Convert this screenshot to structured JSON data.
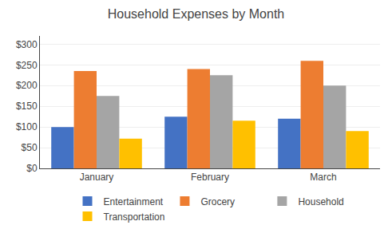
{
  "chart_data": {
    "type": "bar",
    "title": "Household Expenses by Month",
    "categories": [
      "January",
      "February",
      "March"
    ],
    "series": [
      {
        "name": "Entertainment",
        "color": "#4472C4",
        "values": [
          100,
          125,
          120
        ]
      },
      {
        "name": "Grocery",
        "color": "#ED7D31",
        "values": [
          235,
          240,
          260
        ]
      },
      {
        "name": "Household",
        "color": "#A5A5A5",
        "values": [
          175,
          225,
          200
        ]
      },
      {
        "name": "Transportation",
        "color": "#FFC000",
        "values": [
          72,
          115,
          90
        ]
      }
    ],
    "ylim": [
      0,
      320
    ],
    "yticks": [
      {
        "value": 0,
        "label": "$0"
      },
      {
        "value": 50,
        "label": "$50"
      },
      {
        "value": 100,
        "label": "$100"
      },
      {
        "value": 150,
        "label": "$150"
      },
      {
        "value": 200,
        "label": "$200"
      },
      {
        "value": 250,
        "label": "$250"
      },
      {
        "value": 300,
        "label": "$300"
      }
    ],
    "grid": true,
    "legend": "bottom"
  }
}
